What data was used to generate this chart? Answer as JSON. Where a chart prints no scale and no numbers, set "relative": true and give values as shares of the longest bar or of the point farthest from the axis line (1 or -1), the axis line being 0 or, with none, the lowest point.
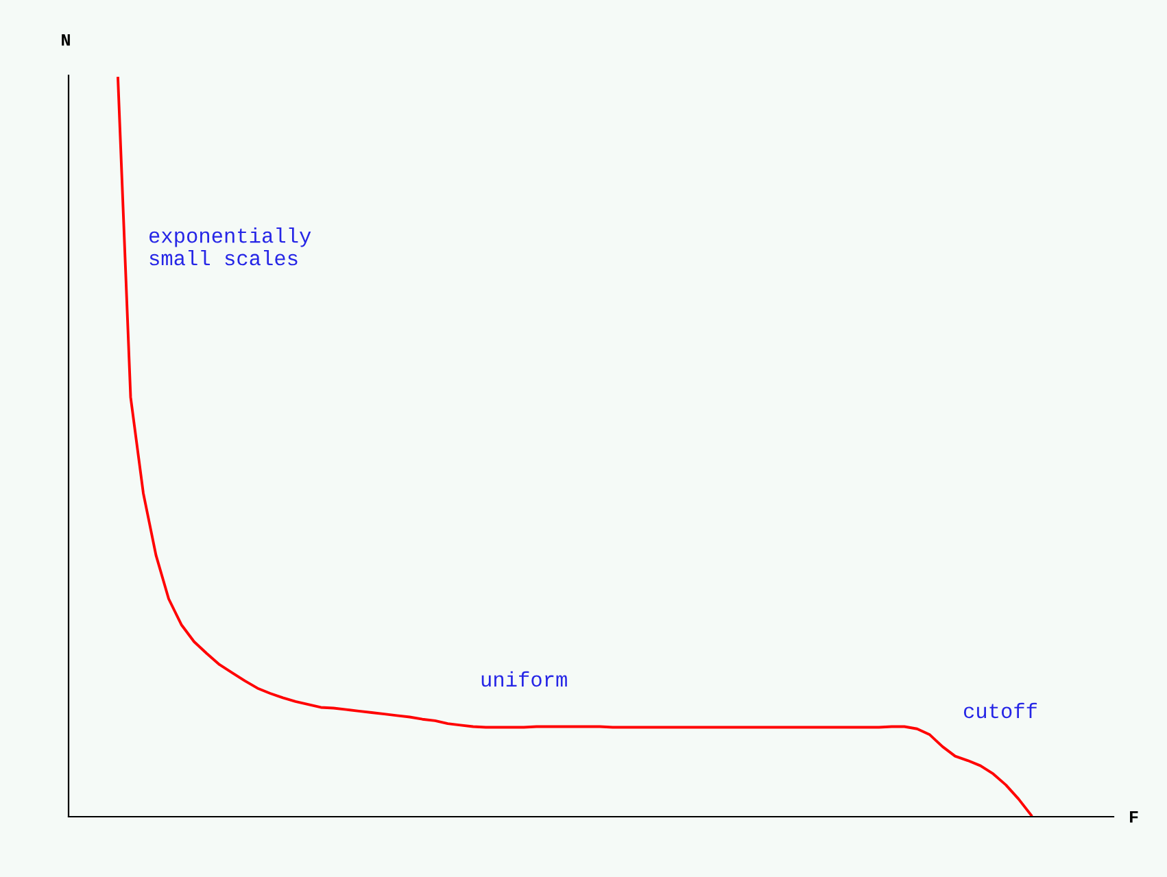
{
  "chart_data": {
    "type": "line",
    "relative": true,
    "ylabel": "N",
    "categories": [
      null,
      null,
      null,
      null,
      null,
      null,
      null,
      null,
      null,
      null,
      null,
      null,
      null,
      null,
      null,
      null,
      null,
      null,
      null,
      null,
      null,
      null,
      null,
      null,
      null,
      null,
      null,
      null,
      null,
      null,
      null,
      null,
      null,
      null,
      null,
      null,
      null,
      null,
      null,
      null,
      null,
      null,
      null,
      null,
      null,
      null,
      null,
      null,
      null,
      null,
      null,
      null,
      null,
      null,
      null,
      null,
      null,
      null,
      null,
      null,
      null,
      null,
      null,
      null,
      null,
      null,
      null,
      null,
      null,
      null,
      null,
      null,
      null
    ],
    "series": [
      {
        "color": "#ff0000",
        "values": [
          1.0,
          0.568,
          0.438,
          0.354,
          0.295,
          0.26,
          0.237,
          0.221,
          0.206,
          0.195,
          0.184,
          0.174,
          0.167,
          0.161,
          0.156,
          0.152,
          0.148,
          0.147,
          0.145,
          0.143,
          0.141,
          0.139,
          0.137,
          0.135,
          0.132,
          0.13,
          0.126,
          0.124,
          0.122,
          0.121,
          0.121,
          0.121,
          0.121,
          0.122,
          0.122,
          0.122,
          0.122,
          0.122,
          0.122,
          0.121,
          0.121,
          0.121,
          0.121,
          0.121,
          0.121,
          0.121,
          0.121,
          0.121,
          0.121,
          0.121,
          0.121,
          0.121,
          0.121,
          0.121,
          0.121,
          0.121,
          0.121,
          0.121,
          0.121,
          0.121,
          0.121,
          0.122,
          0.122,
          0.119,
          0.111,
          0.095,
          0.082,
          0.076,
          0.069,
          0.058,
          0.043,
          0.024,
          0.002
        ]
      }
    ],
    "annotations": [
      "exponentially\nsmall scales",
      "uniform",
      "cutoff",
      "F"
    ],
    "grid": false,
    "legend": false,
    "marker": "none",
    "line_style": "solid"
  }
}
